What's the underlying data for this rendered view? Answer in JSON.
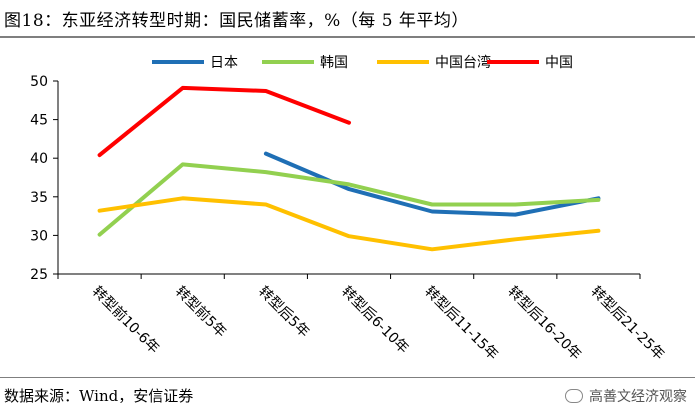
{
  "header": {
    "title": "图18：东亚经济转型时期：国民储蓄率，%（每 5 年平均）"
  },
  "footer": {
    "source": "数据来源：Wind，安信证券",
    "watermark": "高善文经济观察"
  },
  "chart_data": {
    "type": "line",
    "title": "图18：东亚经济转型时期：国民储蓄率，%（每 5 年平均）",
    "xlabel": "",
    "ylabel": "",
    "categories": [
      "转型前10-6年",
      "转型前5年",
      "转型后5年",
      "转型后6-10年",
      "转型后11-15年",
      "转型后16-20年",
      "转型后21-25年"
    ],
    "ylim": [
      25,
      50
    ],
    "yticks": [
      25,
      30,
      35,
      40,
      45,
      50
    ],
    "legend_position": "top",
    "series": [
      {
        "name": "日本",
        "color": "#1f6fb5",
        "values": [
          null,
          null,
          40.6,
          36.0,
          33.1,
          32.7,
          34.8
        ]
      },
      {
        "name": "韩国",
        "color": "#92d050",
        "values": [
          30.1,
          39.2,
          38.2,
          36.6,
          34.0,
          34.0,
          34.6
        ]
      },
      {
        "name": "中国台湾",
        "color": "#ffc000",
        "values": [
          33.2,
          34.8,
          34.0,
          29.9,
          28.2,
          29.5,
          30.6
        ]
      },
      {
        "name": "中国",
        "color": "#ff0000",
        "values": [
          40.4,
          49.1,
          48.7,
          44.6,
          null,
          null,
          null
        ]
      }
    ]
  }
}
